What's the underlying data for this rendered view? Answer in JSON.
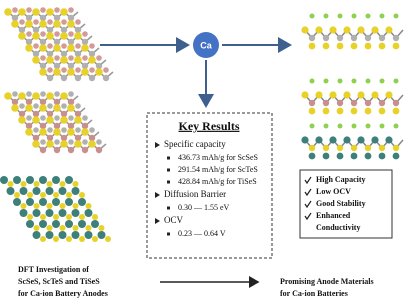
{
  "center_label": "Ca",
  "key_results": {
    "title": "Key Results",
    "sections": [
      {
        "heading": "Specific capacity",
        "items": [
          "436.73 mAh/g for ScSeS",
          "291.54 mAh/g for ScTeS",
          "428.84 mAh/g for TiSeS"
        ]
      },
      {
        "heading": "Diffusion Barrier",
        "items": [
          "0.30 — 1.55 eV"
        ]
      },
      {
        "heading": "OCV",
        "items": [
          "0.23 — 0.64 V"
        ]
      }
    ]
  },
  "features": [
    "High Capacity",
    "Low OCV",
    "Good Stability",
    "Enhanced",
    "Conductivity"
  ],
  "left_caption": [
    "DFT Investigation of",
    "ScSeS, ScTeS and TiSeS",
    "for Ca-ion Battery Anodes"
  ],
  "right_caption": [
    "Promising Anode Materials",
    "for Ca-ion Batteries"
  ]
}
